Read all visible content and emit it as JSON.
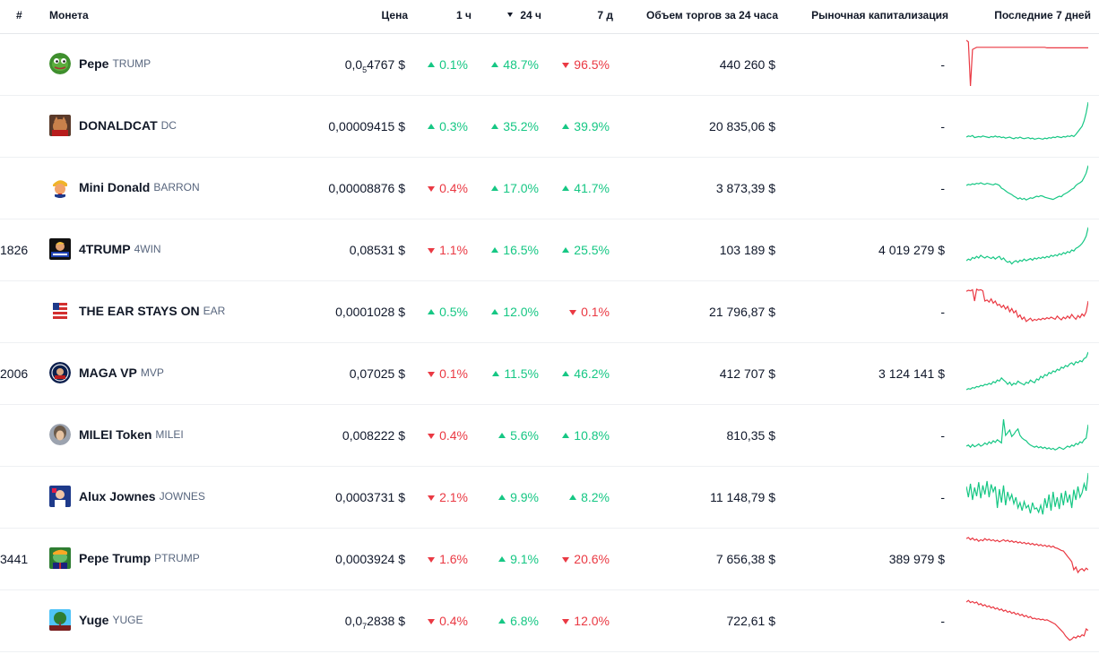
{
  "header": {
    "rank": "#",
    "coin": "Монета",
    "price": "Цена",
    "h1": "1 ч",
    "h24": "24 ч",
    "d7": "7 д",
    "volume": "Объем торгов за 24 часа",
    "mcap": "Рыночная капитализация",
    "spark": "Последние 7 дней"
  },
  "colors": {
    "up": "#16c784",
    "down": "#ea3943"
  },
  "rows": [
    {
      "rank": "",
      "name": "Pepe",
      "symbol": "TRUMP",
      "logo": "pepe-frog-icon",
      "price_pre": "0,0",
      "price_sub": "5",
      "price_post": "4767 $",
      "h1": "0.1%",
      "h1_dir": "up",
      "h24": "48.7%",
      "h24_dir": "up",
      "d7": "96.5%",
      "d7_dir": "down",
      "volume": "440 260 $",
      "mcap": "-",
      "spark_trend": "down",
      "spark": [
        95,
        92,
        10,
        78,
        80,
        82,
        82,
        82,
        82,
        82,
        82,
        82,
        82,
        82,
        82,
        82,
        82,
        82,
        82,
        82,
        82,
        82,
        82,
        82,
        82,
        82,
        82,
        82,
        82,
        82,
        82,
        82,
        82,
        82,
        82,
        82,
        82,
        82,
        82,
        81,
        81,
        81,
        81,
        81,
        81,
        81,
        81,
        81,
        81,
        81,
        81,
        81,
        81,
        81,
        81,
        81,
        81,
        81,
        81,
        81
      ]
    },
    {
      "rank": "",
      "name": "DONALDCAT",
      "symbol": "DC",
      "logo": "cat-icon",
      "price": "0,00009415 $",
      "h1": "0.3%",
      "h1_dir": "up",
      "h24": "35.2%",
      "h24_dir": "up",
      "d7": "39.9%",
      "d7_dir": "up",
      "volume": "20 835,06 $",
      "mcap": "-",
      "spark_trend": "up",
      "spark": [
        30,
        32,
        31,
        33,
        29,
        30,
        31,
        30,
        32,
        31,
        30,
        29,
        31,
        30,
        32,
        30,
        31,
        29,
        30,
        28,
        29,
        30,
        28,
        27,
        29,
        28,
        30,
        28,
        27,
        28,
        29,
        27,
        28,
        26,
        27,
        28,
        27,
        26,
        28,
        27,
        29,
        28,
        30,
        29,
        31,
        30,
        29,
        31,
        30,
        32,
        31,
        33,
        31,
        35,
        40,
        45,
        50,
        60,
        75,
        95
      ]
    },
    {
      "rank": "",
      "name": "Mini Donald",
      "symbol": "BARRON",
      "logo": "donald-cartoon-icon",
      "price": "0,00008876 $",
      "h1": "0.4%",
      "h1_dir": "down",
      "h24": "17.0%",
      "h24_dir": "up",
      "d7": "41.7%",
      "d7_dir": "up",
      "volume": "3 873,39 $",
      "mcap": "-",
      "spark_trend": "up",
      "spark": [
        55,
        57,
        56,
        58,
        57,
        59,
        58,
        60,
        58,
        57,
        59,
        58,
        57,
        56,
        58,
        57,
        55,
        50,
        48,
        45,
        42,
        40,
        38,
        35,
        33,
        30,
        32,
        29,
        31,
        28,
        30,
        32,
        31,
        33,
        35,
        34,
        36,
        35,
        33,
        32,
        31,
        30,
        29,
        31,
        33,
        35,
        34,
        38,
        40,
        42,
        45,
        48,
        50,
        55,
        58,
        60,
        63,
        70,
        78,
        92
      ]
    },
    {
      "rank": "1826",
      "name": "4TRUMP",
      "symbol": "4WIN",
      "logo": "trump-badge-icon",
      "price": "0,08531 $",
      "h1": "1.1%",
      "h1_dir": "down",
      "h24": "16.5%",
      "h24_dir": "up",
      "d7": "25.5%",
      "d7_dir": "up",
      "volume": "103 189 $",
      "mcap": "4 019 279 $",
      "spark_trend": "up",
      "spark": [
        30,
        33,
        31,
        36,
        34,
        38,
        35,
        40,
        37,
        35,
        38,
        36,
        34,
        37,
        33,
        36,
        38,
        32,
        35,
        30,
        27,
        29,
        24,
        28,
        30,
        27,
        31,
        29,
        33,
        30,
        32,
        34,
        31,
        35,
        33,
        36,
        34,
        37,
        35,
        38,
        36,
        40,
        38,
        41,
        39,
        43,
        41,
        45,
        43,
        47,
        45,
        50,
        48,
        53,
        55,
        58,
        62,
        68,
        76,
        92
      ]
    },
    {
      "rank": "",
      "name": "THE EAR STAYS ON",
      "symbol": "EAR",
      "logo": "flag-ear-icon",
      "price": "0,0001028 $",
      "h1": "0.5%",
      "h1_dir": "up",
      "h24": "12.0%",
      "h24_dir": "up",
      "d7": "0.1%",
      "d7_dir": "down",
      "volume": "21 796,87 $",
      "mcap": "-",
      "spark_trend": "down",
      "spark": [
        88,
        90,
        89,
        91,
        70,
        92,
        90,
        91,
        89,
        70,
        72,
        68,
        74,
        66,
        70,
        62,
        64,
        58,
        62,
        55,
        60,
        50,
        56,
        48,
        52,
        40,
        44,
        36,
        40,
        32,
        35,
        38,
        33,
        36,
        34,
        37,
        35,
        38,
        36,
        39,
        37,
        40,
        38,
        36,
        42,
        38,
        35,
        40,
        37,
        42,
        38,
        45,
        40,
        36,
        43,
        39,
        46,
        42,
        50,
        70
      ]
    },
    {
      "rank": "2006",
      "name": "MAGA VP",
      "symbol": "MVP",
      "logo": "maga-seal-icon",
      "price": "0,07025 $",
      "h1": "0.1%",
      "h1_dir": "down",
      "h24": "11.5%",
      "h24_dir": "up",
      "d7": "46.2%",
      "d7_dir": "up",
      "volume": "412 707 $",
      "mcap": "3 124 141 $",
      "spark_trend": "up",
      "spark": [
        20,
        22,
        21,
        24,
        23,
        26,
        25,
        28,
        27,
        30,
        29,
        32,
        30,
        35,
        33,
        38,
        36,
        42,
        38,
        35,
        30,
        34,
        28,
        32,
        30,
        36,
        33,
        31,
        29,
        34,
        32,
        38,
        35,
        33,
        40,
        38,
        45,
        42,
        48,
        46,
        52,
        50,
        55,
        53,
        58,
        56,
        62,
        60,
        65,
        63,
        68,
        70,
        66,
        72,
        70,
        74,
        72,
        78,
        80,
        90
      ]
    },
    {
      "rank": "",
      "name": "MILEI Token",
      "symbol": "MILEI",
      "logo": "milei-portrait-icon",
      "price": "0,008222 $",
      "h1": "0.4%",
      "h1_dir": "down",
      "h24": "5.6%",
      "h24_dir": "up",
      "d7": "10.8%",
      "d7_dir": "up",
      "volume": "810,35 $",
      "mcap": "-",
      "spark_trend": "up",
      "spark": [
        30,
        32,
        28,
        33,
        29,
        31,
        34,
        30,
        32,
        36,
        33,
        38,
        35,
        40,
        37,
        42,
        39,
        36,
        80,
        50,
        55,
        60,
        48,
        52,
        58,
        62,
        50,
        45,
        42,
        40,
        35,
        32,
        30,
        28,
        30,
        27,
        29,
        26,
        28,
        25,
        27,
        24,
        26,
        23,
        25,
        28,
        26,
        24,
        27,
        30,
        28,
        32,
        30,
        35,
        33,
        38,
        36,
        42,
        45,
        70
      ]
    },
    {
      "rank": "",
      "name": "Alux Jownes",
      "symbol": "JOWNES",
      "logo": "alux-portrait-icon",
      "price": "0,0003731 $",
      "h1": "2.1%",
      "h1_dir": "down",
      "h24": "9.9%",
      "h24_dir": "up",
      "d7": "8.2%",
      "d7_dir": "up",
      "volume": "11 148,79 $",
      "mcap": "-",
      "spark_trend": "up",
      "spark": [
        70,
        50,
        75,
        45,
        68,
        52,
        78,
        48,
        72,
        55,
        80,
        50,
        74,
        60,
        70,
        30,
        65,
        40,
        72,
        35,
        60,
        45,
        55,
        38,
        50,
        30,
        40,
        25,
        42,
        30,
        35,
        20,
        40,
        28,
        30,
        22,
        35,
        18,
        48,
        30,
        55,
        25,
        60,
        32,
        50,
        28,
        58,
        35,
        62,
        40,
        55,
        30,
        64,
        45,
        70,
        50,
        58,
        75,
        62,
        95
      ]
    },
    {
      "rank": "3441",
      "name": "Pepe Trump",
      "symbol": "PTRUMP",
      "logo": "pepe-trump-icon",
      "price": "0,0003924 $",
      "h1": "1.6%",
      "h1_dir": "down",
      "h24": "9.1%",
      "h24_dir": "up",
      "d7": "20.6%",
      "d7_dir": "down",
      "volume": "7 656,38 $",
      "mcap": "389 979 $",
      "spark_trend": "down",
      "spark": [
        88,
        90,
        86,
        89,
        85,
        87,
        83,
        86,
        84,
        88,
        85,
        87,
        84,
        86,
        83,
        85,
        82,
        84,
        86,
        83,
        85,
        82,
        84,
        81,
        83,
        80,
        82,
        79,
        81,
        78,
        80,
        77,
        79,
        76,
        78,
        75,
        77,
        74,
        76,
        73,
        75,
        72,
        74,
        71,
        70,
        68,
        66,
        65,
        60,
        55,
        50,
        45,
        30,
        35,
        25,
        30,
        32,
        28,
        33,
        30
      ]
    },
    {
      "rank": "",
      "name": "Yuge",
      "symbol": "YUGE",
      "logo": "yuge-tree-icon",
      "price_pre": "0,0",
      "price_sub": "7",
      "price_post": "2838 $",
      "h1": "0.4%",
      "h1_dir": "down",
      "h24": "6.8%",
      "h24_dir": "up",
      "d7": "12.0%",
      "d7_dir": "down",
      "volume": "722,61 $",
      "mcap": "-",
      "spark_trend": "down",
      "spark": [
        85,
        88,
        84,
        86,
        83,
        85,
        80,
        82,
        78,
        80,
        76,
        78,
        74,
        76,
        72,
        74,
        70,
        72,
        68,
        70,
        66,
        68,
        64,
        66,
        62,
        64,
        60,
        62,
        58,
        60,
        56,
        58,
        54,
        55,
        53,
        54,
        52,
        53,
        51,
        52,
        50,
        48,
        46,
        44,
        40,
        36,
        32,
        28,
        22,
        18,
        14,
        16,
        20,
        18,
        22,
        20,
        24,
        22,
        35,
        32
      ]
    }
  ]
}
